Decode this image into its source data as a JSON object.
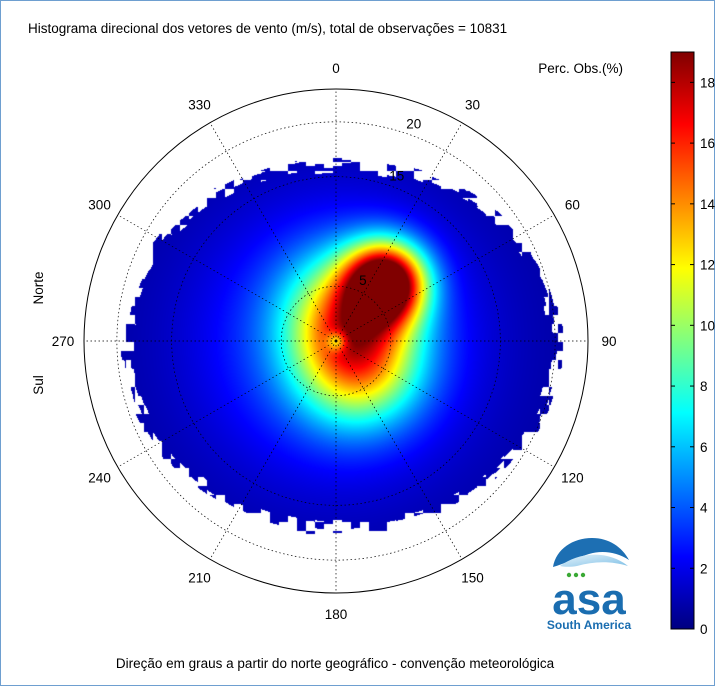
{
  "title": "Histograma direcional dos vetores de vento (m/s), total de observações = 10831",
  "xlabel": "Direção em graus a partir do norte geográfico - convenção meteorológica",
  "side_labels": {
    "top": "Norte",
    "bottom": "Sul"
  },
  "colorbar_label": "Perc. Obs.(%)",
  "logo": {
    "text": "asa",
    "subtitle": "South America"
  },
  "chart_data": {
    "type": "heatmap",
    "subtype": "polar-histogram",
    "title": "Histograma direcional dos vetores de vento (m/s), total de observações = 10831",
    "xlabel": "Direção em graus a partir do norte geográfico - convenção meteorológica",
    "total_observations": 10831,
    "angle_ticks": [
      0,
      30,
      60,
      90,
      120,
      150,
      180,
      210,
      240,
      270,
      300,
      330
    ],
    "angle_tick_labels": [
      "0",
      "30",
      "60",
      "90",
      "120",
      "150",
      "180",
      "210",
      "240",
      "270",
      "300",
      "330"
    ],
    "angle_convention": "clockwise from north",
    "radial_ticks": [
      5,
      15,
      20
    ],
    "radial_tick_labels": [
      "5",
      "15",
      "20"
    ],
    "radial_max": 23,
    "radial_unit": "m/s",
    "grid": true,
    "colorbar": {
      "label": "Perc. Obs.(%)",
      "min": 0,
      "max": 19,
      "ticks": [
        0,
        2,
        4,
        6,
        8,
        10,
        12,
        14,
        16,
        18
      ],
      "tick_labels": [
        "0",
        "2",
        "4",
        "6",
        "8",
        "10",
        "12",
        "14",
        "16",
        "18"
      ],
      "colormap": "jet"
    },
    "density_peak": {
      "direction_deg": 40,
      "speed": 7,
      "value": 18.5
    },
    "density_secondary": [
      {
        "direction_deg": 135,
        "speed": 3,
        "value": 9
      },
      {
        "direction_deg": 20,
        "speed": 3,
        "value": 8
      }
    ],
    "data_extent": {
      "max_speed_north": 16,
      "max_speed_east": 20,
      "max_speed_south": 17,
      "max_speed_west": 19
    }
  }
}
